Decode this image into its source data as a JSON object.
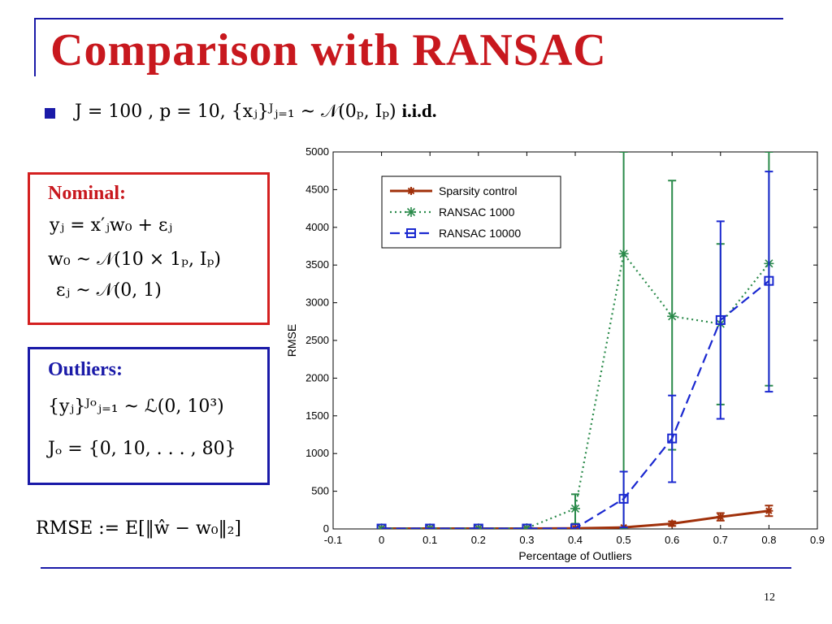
{
  "slide": {
    "title": "Comparison with RANSAC",
    "bullet": "J = 100 , p = 10, {xⱼ}ᴶⱼ₌₁ ~ 𝒩(0ₚ, Iₚ)",
    "bullet_suffix": "i.i.d.",
    "nominal": {
      "heading": "Nominal:",
      "eq1": "yⱼ = x′ⱼw₀ + εⱼ",
      "eq2": "w₀ ~ 𝒩(10 × 1ₚ, Iₚ)",
      "eq3": "εⱼ ~ 𝒩(0, 1)"
    },
    "outliers": {
      "heading": "Outliers:",
      "eq1": "{yⱼ}ᴶᵒⱼ₌₁ ~ ℒ(0, 10³)",
      "eq2": "Jₒ = {0, 10, . . . , 80}"
    },
    "rmse_def": "RMSE := E[‖ŵ − w₀‖₂]",
    "page_number": "12",
    "colors": {
      "title": "#c8181e",
      "rule": "#1a1aa8",
      "nominal_border": "#d42020",
      "outliers_border": "#1a1aa8"
    }
  },
  "chart_data": {
    "type": "line",
    "xlabel": "Percentage of Outliers",
    "ylabel": "RMSE",
    "xlim": [
      -0.1,
      0.9
    ],
    "ylim": [
      0,
      5000
    ],
    "xticks": [
      "-0.1",
      "0",
      "0.1",
      "0.2",
      "0.3",
      "0.4",
      "0.5",
      "0.6",
      "0.7",
      "0.8",
      "0.9"
    ],
    "yticks": [
      "0",
      "500",
      "1000",
      "1500",
      "2000",
      "2500",
      "3000",
      "3500",
      "4000",
      "4500",
      "5000"
    ],
    "legend_position": "top-left",
    "x": [
      0,
      0.1,
      0.2,
      0.3,
      0.4,
      0.5,
      0.6,
      0.7,
      0.8
    ],
    "series": [
      {
        "name": "Sparsity control",
        "color": "#a0300a",
        "style": "solid",
        "marker": "star",
        "values": [
          5,
          5,
          5,
          5,
          8,
          20,
          70,
          160,
          240
        ],
        "err_low": [
          0,
          0,
          0,
          0,
          2,
          10,
          40,
          110,
          170
        ],
        "err_high": [
          10,
          10,
          10,
          10,
          14,
          30,
          100,
          210,
          310
        ]
      },
      {
        "name": "RANSAC 1000",
        "color": "#2a8a4a",
        "style": "dotted",
        "marker": "asterisk",
        "values": [
          8,
          8,
          8,
          10,
          270,
          3650,
          2820,
          2720,
          3520
        ],
        "err_low": [
          0,
          0,
          0,
          0,
          70,
          0,
          1050,
          1650,
          1900
        ],
        "err_high": [
          16,
          16,
          16,
          20,
          460,
          5000,
          4620,
          3780,
          5000
        ]
      },
      {
        "name": "RANSAC 10000",
        "color": "#1a28d0",
        "style": "dashed",
        "marker": "square",
        "values": [
          5,
          5,
          5,
          5,
          8,
          400,
          1200,
          2770,
          3290
        ],
        "err_low": [
          0,
          0,
          0,
          0,
          0,
          20,
          620,
          1460,
          1820
        ],
        "err_high": [
          10,
          10,
          10,
          10,
          16,
          760,
          1770,
          4080,
          4740
        ]
      }
    ]
  }
}
